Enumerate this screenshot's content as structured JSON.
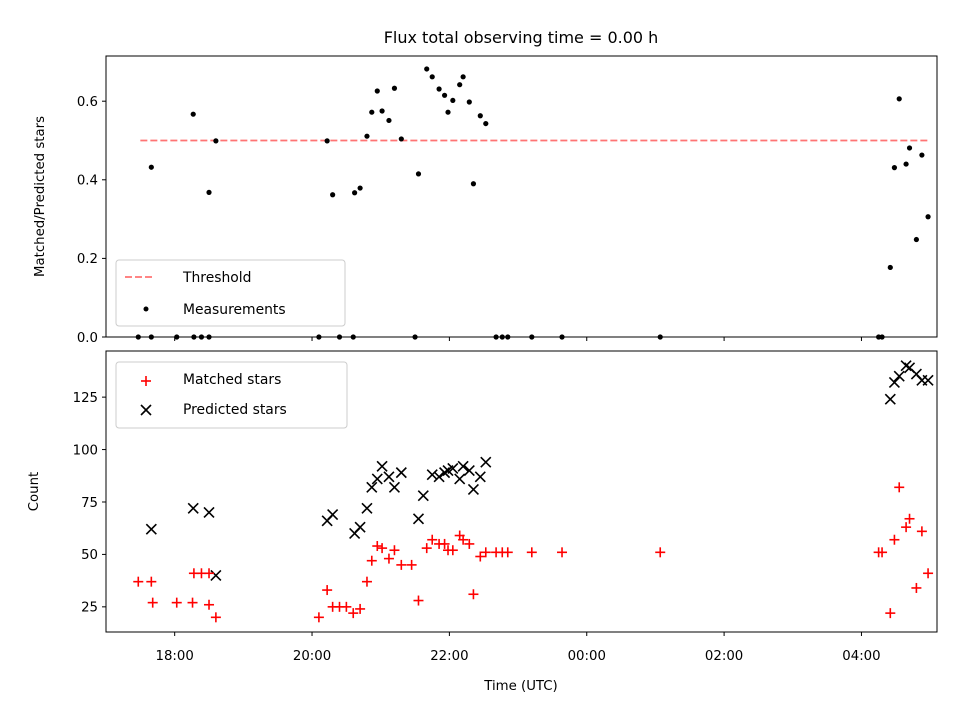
{
  "chart_data": {
    "type": "scatter",
    "title": "Flux total observing time = 0.00 h",
    "xlabel": "Time (UTC)",
    "xlim": [
      17.0,
      29.1
    ],
    "x_ticks": [
      {
        "value": 18,
        "label": "18:00"
      },
      {
        "value": 20,
        "label": "20:00"
      },
      {
        "value": 22,
        "label": "22:00"
      },
      {
        "value": 24,
        "label": "00:00"
      },
      {
        "value": 26,
        "label": "02:00"
      },
      {
        "value": 28,
        "label": "04:00"
      }
    ],
    "colors": {
      "threshold": "#ff7474",
      "measurements": "#000000",
      "matched": "#ff0000",
      "predicted": "#000000"
    },
    "panels": [
      {
        "ylabel": "Matched/Predicted stars",
        "ylim": [
          0,
          0.715
        ],
        "y_ticks": [
          {
            "value": 0,
            "label": "0.0"
          },
          {
            "value": 0.2,
            "label": "0.2"
          },
          {
            "value": 0.4,
            "label": "0.4"
          },
          {
            "value": 0.6,
            "label": "0.6"
          }
        ],
        "legend": {
          "position": "lower left",
          "entries": [
            "Threshold",
            "Measurements"
          ]
        },
        "threshold": {
          "name": "Threshold",
          "x": [
            17.5,
            29.0
          ],
          "y": 0.5,
          "style": "dashed"
        },
        "measurements": {
          "name": "Measurements",
          "points": [
            [
              17.47,
              0
            ],
            [
              17.66,
              0.432
            ],
            [
              17.66,
              0
            ],
            [
              18.03,
              0
            ],
            [
              18.27,
              0.567
            ],
            [
              18.28,
              0
            ],
            [
              18.39,
              0
            ],
            [
              18.5,
              0.368
            ],
            [
              18.5,
              0
            ],
            [
              18.6,
              0.499
            ],
            [
              20.1,
              0
            ],
            [
              20.22,
              0.499
            ],
            [
              20.3,
              0.362
            ],
            [
              20.4,
              0
            ],
            [
              20.6,
              0
            ],
            [
              20.62,
              0.367
            ],
            [
              20.7,
              0.379
            ],
            [
              20.8,
              0.511
            ],
            [
              20.87,
              0.572
            ],
            [
              20.95,
              0.626
            ],
            [
              21.02,
              0.575
            ],
            [
              21.12,
              0.551
            ],
            [
              21.2,
              0.633
            ],
            [
              21.3,
              0.504
            ],
            [
              21.5,
              0
            ],
            [
              21.55,
              0.415
            ],
            [
              21.67,
              0.682
            ],
            [
              21.75,
              0.662
            ],
            [
              21.85,
              0.631
            ],
            [
              21.93,
              0.615
            ],
            [
              21.98,
              0.572
            ],
            [
              22.05,
              0.602
            ],
            [
              22.15,
              0.642
            ],
            [
              22.2,
              0.662
            ],
            [
              22.29,
              0.598
            ],
            [
              22.35,
              0.39
            ],
            [
              22.45,
              0.563
            ],
            [
              22.53,
              0.543
            ],
            [
              22.68,
              0
            ],
            [
              22.77,
              0
            ],
            [
              22.85,
              0
            ],
            [
              23.2,
              0
            ],
            [
              23.64,
              0
            ],
            [
              25.07,
              0
            ],
            [
              28.25,
              0
            ],
            [
              28.3,
              0
            ],
            [
              28.42,
              0.177
            ],
            [
              28.48,
              0.431
            ],
            [
              28.55,
              0.606
            ],
            [
              28.65,
              0.44
            ],
            [
              28.7,
              0.481
            ],
            [
              28.8,
              0.248
            ],
            [
              28.88,
              0.463
            ],
            [
              28.97,
              0.306
            ]
          ]
        }
      },
      {
        "ylabel": "Count",
        "ylim": [
          13,
          147
        ],
        "y_ticks": [
          {
            "value": 25,
            "label": "25"
          },
          {
            "value": 50,
            "label": "50"
          },
          {
            "value": 75,
            "label": "75"
          },
          {
            "value": 100,
            "label": "100"
          },
          {
            "value": 125,
            "label": "125"
          }
        ],
        "legend": {
          "position": "upper left",
          "entries": [
            "Matched stars",
            "Predicted stars"
          ]
        },
        "series": [
          {
            "name": "Matched stars",
            "marker": "plus",
            "points": [
              [
                17.47,
                37
              ],
              [
                17.66,
                37
              ],
              [
                17.68,
                27
              ],
              [
                18.03,
                27
              ],
              [
                18.26,
                27
              ],
              [
                18.28,
                41
              ],
              [
                18.39,
                41
              ],
              [
                18.5,
                41
              ],
              [
                18.5,
                26
              ],
              [
                18.6,
                20
              ],
              [
                20.1,
                20
              ],
              [
                20.22,
                33
              ],
              [
                20.3,
                25
              ],
              [
                20.4,
                25
              ],
              [
                20.5,
                25
              ],
              [
                20.6,
                22
              ],
              [
                20.7,
                24
              ],
              [
                20.8,
                37
              ],
              [
                20.87,
                47
              ],
              [
                20.95,
                54
              ],
              [
                21.02,
                53
              ],
              [
                21.12,
                48
              ],
              [
                21.2,
                52
              ],
              [
                21.3,
                45
              ],
              [
                21.45,
                45
              ],
              [
                21.55,
                28
              ],
              [
                21.67,
                53
              ],
              [
                21.75,
                57
              ],
              [
                21.85,
                55
              ],
              [
                21.93,
                55
              ],
              [
                21.98,
                52
              ],
              [
                22.05,
                52
              ],
              [
                22.15,
                59
              ],
              [
                22.2,
                57
              ],
              [
                22.29,
                55
              ],
              [
                22.35,
                31
              ],
              [
                22.45,
                49
              ],
              [
                22.53,
                51
              ],
              [
                22.68,
                51
              ],
              [
                22.77,
                51
              ],
              [
                22.85,
                51
              ],
              [
                23.2,
                51
              ],
              [
                23.64,
                51
              ],
              [
                25.07,
                51
              ],
              [
                28.25,
                51
              ],
              [
                28.3,
                51
              ],
              [
                28.42,
                22
              ],
              [
                28.48,
                57
              ],
              [
                28.55,
                82
              ],
              [
                28.65,
                63
              ],
              [
                28.7,
                67
              ],
              [
                28.8,
                34
              ],
              [
                28.88,
                61
              ],
              [
                28.97,
                41
              ]
            ]
          },
          {
            "name": "Predicted stars",
            "marker": "x",
            "points": [
              [
                17.66,
                62
              ],
              [
                18.27,
                72
              ],
              [
                18.5,
                70
              ],
              [
                18.6,
                40
              ],
              [
                20.22,
                66
              ],
              [
                20.3,
                69
              ],
              [
                20.62,
                60
              ],
              [
                20.7,
                63
              ],
              [
                20.8,
                72
              ],
              [
                20.87,
                82
              ],
              [
                20.95,
                86
              ],
              [
                21.02,
                92
              ],
              [
                21.12,
                87
              ],
              [
                21.2,
                82
              ],
              [
                21.3,
                89
              ],
              [
                21.55,
                67
              ],
              [
                21.62,
                78
              ],
              [
                21.75,
                88
              ],
              [
                21.85,
                87
              ],
              [
                21.93,
                89
              ],
              [
                21.98,
                90
              ],
              [
                22.05,
                91
              ],
              [
                22.15,
                86
              ],
              [
                22.2,
                92
              ],
              [
                22.29,
                90
              ],
              [
                22.35,
                81
              ],
              [
                22.45,
                87
              ],
              [
                22.53,
                94
              ],
              [
                28.42,
                124
              ],
              [
                28.48,
                132
              ],
              [
                28.55,
                135
              ],
              [
                28.65,
                140
              ],
              [
                28.7,
                139
              ],
              [
                28.8,
                136
              ],
              [
                28.88,
                133
              ],
              [
                28.97,
                133
              ]
            ]
          }
        ]
      }
    ]
  }
}
